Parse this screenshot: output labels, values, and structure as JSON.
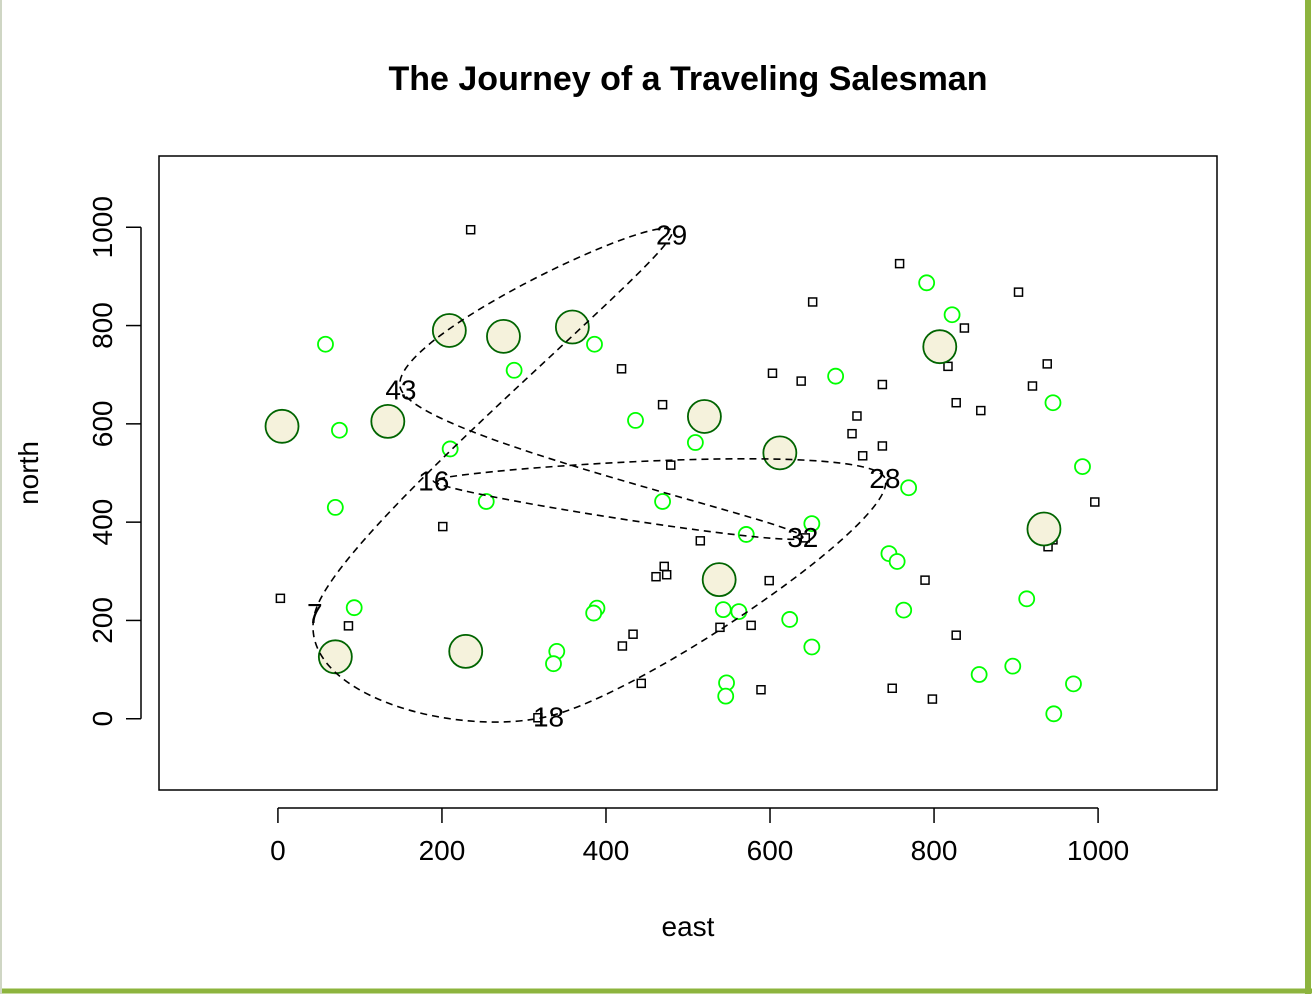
{
  "chart_data": {
    "type": "scatter",
    "title": "The Journey of a Traveling Salesman",
    "xlabel": "east",
    "ylabel": "north",
    "xlim": [
      -145,
      1145
    ],
    "ylim": [
      -145,
      1145
    ],
    "xticks": [
      0,
      200,
      400,
      600,
      800,
      1000
    ],
    "yticks": [
      0,
      200,
      400,
      600,
      800,
      1000
    ],
    "grid": false,
    "colors": {
      "frame_border": "#8db43e",
      "square_stroke": "#000000",
      "small_circle": "#00ff00",
      "large_circle_stroke": "#006400",
      "large_circle_fill": "#f5f2dc",
      "route": "#000000"
    },
    "series": [
      {
        "marker": "square",
        "points": [
          [
            235,
            995
          ],
          [
            758,
            926
          ],
          [
            652,
            848
          ],
          [
            903,
            868
          ],
          [
            837,
            795
          ],
          [
            938,
            722
          ],
          [
            419,
            712
          ],
          [
            817,
            717
          ],
          [
            603,
            703
          ],
          [
            638,
            687
          ],
          [
            737,
            680
          ],
          [
            920,
            677
          ],
          [
            469,
            639
          ],
          [
            827,
            643
          ],
          [
            857,
            627
          ],
          [
            706,
            616
          ],
          [
            700,
            580
          ],
          [
            737,
            555
          ],
          [
            713,
            535
          ],
          [
            479,
            516
          ],
          [
            996,
            441
          ],
          [
            201,
            391
          ],
          [
            515,
            362
          ],
          [
            643,
            368
          ],
          [
            945,
            364
          ],
          [
            939,
            350
          ],
          [
            471,
            310
          ],
          [
            474,
            293
          ],
          [
            461,
            289
          ],
          [
            599,
            281
          ],
          [
            789,
            282
          ],
          [
            3,
            245
          ],
          [
            86,
            189
          ],
          [
            539,
            186
          ],
          [
            577,
            190
          ],
          [
            433,
            172
          ],
          [
            827,
            170
          ],
          [
            420,
            148
          ],
          [
            443,
            72
          ],
          [
            589,
            59
          ],
          [
            749,
            62
          ],
          [
            798,
            40
          ],
          [
            317,
            2
          ]
        ]
      },
      {
        "marker": "small-circle",
        "points": [
          [
            58,
            762
          ],
          [
            288,
            709
          ],
          [
            386,
            762
          ],
          [
            791,
            887
          ],
          [
            822,
            822
          ],
          [
            680,
            697
          ],
          [
            436,
            607
          ],
          [
            945,
            643
          ],
          [
            75,
            587
          ],
          [
            210,
            549
          ],
          [
            509,
            562
          ],
          [
            981,
            513
          ],
          [
            254,
            442
          ],
          [
            469,
            442
          ],
          [
            70,
            430
          ],
          [
            769,
            470
          ],
          [
            571,
            375
          ],
          [
            651,
            397
          ],
          [
            745,
            336
          ],
          [
            755,
            320
          ],
          [
            93,
            226
          ],
          [
            389,
            225
          ],
          [
            385,
            215
          ],
          [
            543,
            222
          ],
          [
            562,
            218
          ],
          [
            763,
            221
          ],
          [
            913,
            244
          ],
          [
            624,
            202
          ],
          [
            651,
            146
          ],
          [
            340,
            137
          ],
          [
            336,
            112
          ],
          [
            547,
            73
          ],
          [
            546,
            46
          ],
          [
            855,
            90
          ],
          [
            896,
            107
          ],
          [
            970,
            71
          ],
          [
            946,
            10
          ]
        ]
      },
      {
        "marker": "large-circle",
        "points": [
          [
            209,
            790
          ],
          [
            275,
            778
          ],
          [
            359,
            797
          ],
          [
            807,
            757
          ],
          [
            5,
            595
          ],
          [
            134,
            605
          ],
          [
            520,
            615
          ],
          [
            612,
            541
          ],
          [
            934,
            386
          ],
          [
            538,
            283
          ],
          [
            70,
            126
          ],
          [
            229,
            137
          ]
        ]
      }
    ],
    "route": {
      "stops": [
        {
          "label": "7",
          "x": 45,
          "y": 215
        },
        {
          "label": "29",
          "x": 480,
          "y": 985
        },
        {
          "label": "43",
          "x": 150,
          "y": 670
        },
        {
          "label": "32",
          "x": 640,
          "y": 370
        },
        {
          "label": "16",
          "x": 190,
          "y": 485
        },
        {
          "label": "28",
          "x": 740,
          "y": 490
        },
        {
          "label": "18",
          "x": 330,
          "y": 5
        }
      ],
      "line_style": "dashed"
    }
  }
}
